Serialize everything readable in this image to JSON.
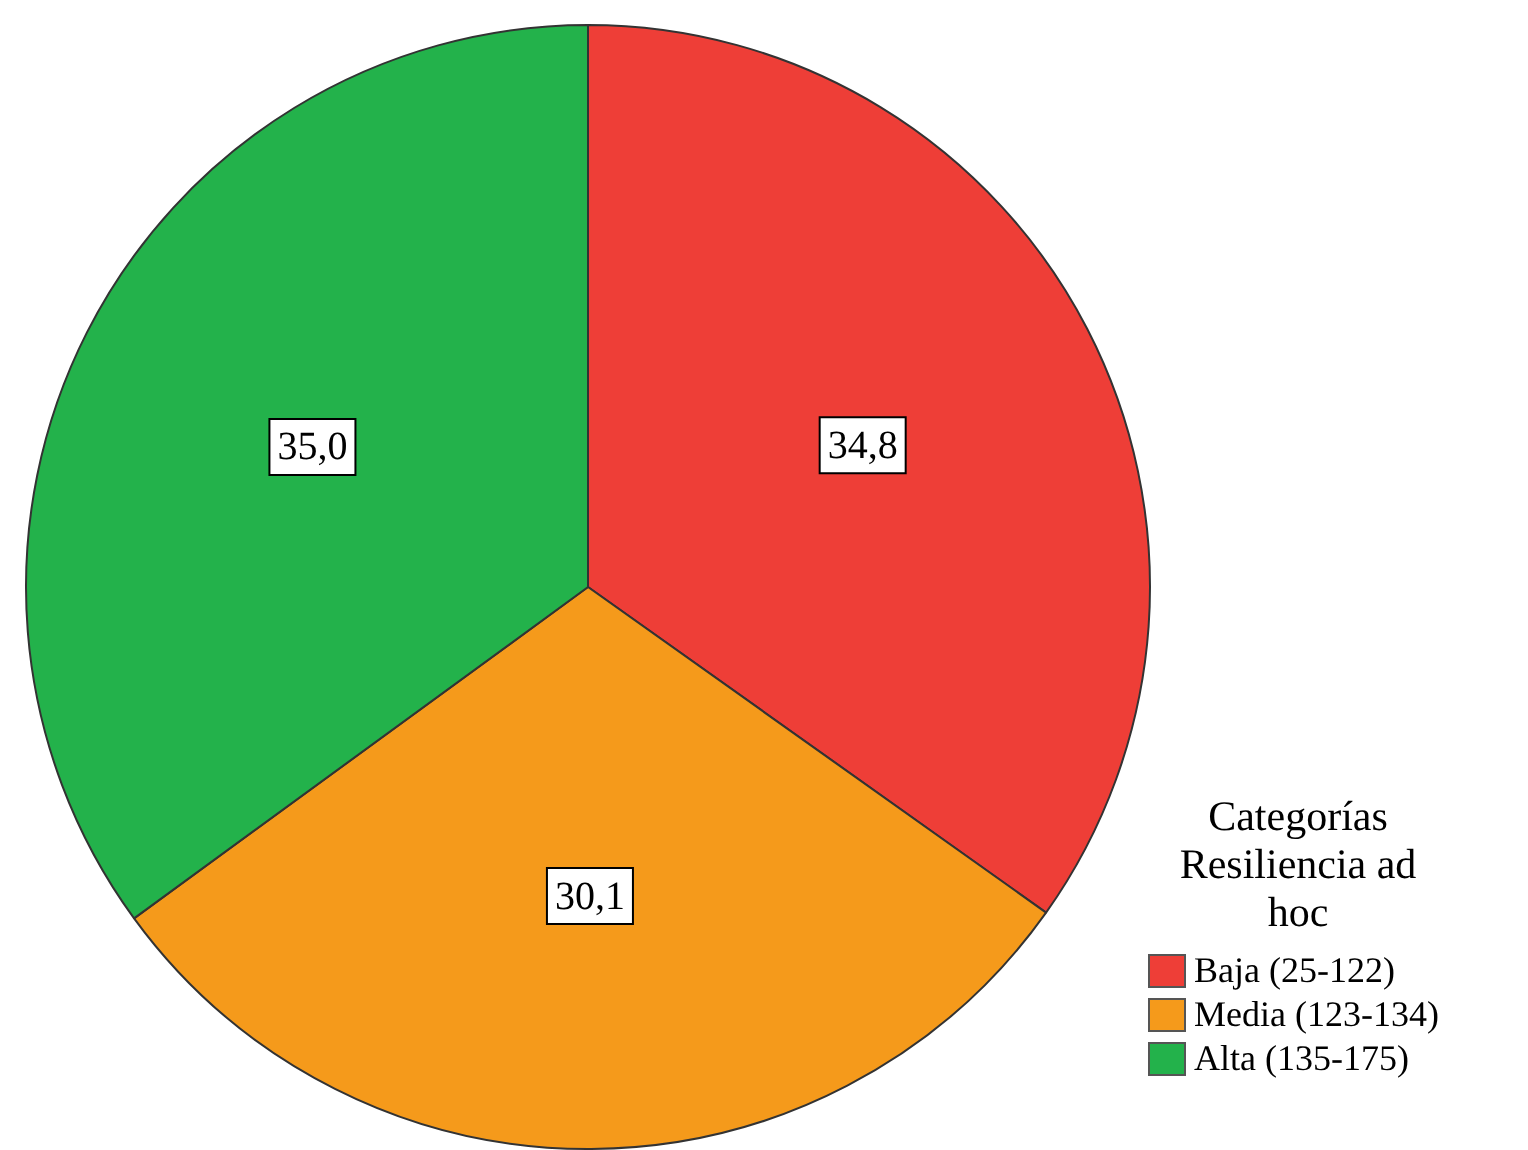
{
  "chart_data": {
    "type": "pie",
    "legend_title": "Categorías Resiliencia ad hoc",
    "legend": "bottom right",
    "categories": [
      "Baja (25-122)",
      "Media (123-134)",
      "Alta (135-175)"
    ],
    "values": [
      34.8,
      30.1,
      35.0
    ],
    "colors": [
      "#ee3e37",
      "#f59a1b",
      "#23b24b"
    ],
    "value_labels": [
      "34,8",
      "30,1",
      "35,0"
    ]
  }
}
